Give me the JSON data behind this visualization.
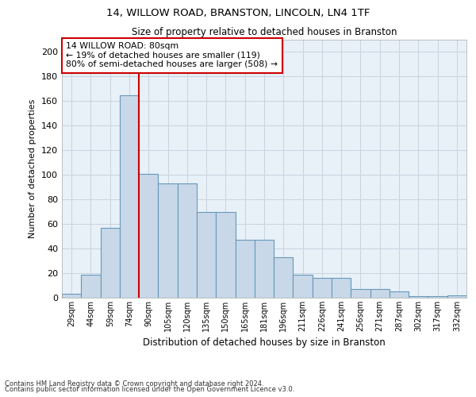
{
  "title1": "14, WILLOW ROAD, BRANSTON, LINCOLN, LN4 1TF",
  "title2": "Size of property relative to detached houses in Branston",
  "xlabel": "Distribution of detached houses by size in Branston",
  "ylabel": "Number of detached properties",
  "footer1": "Contains HM Land Registry data © Crown copyright and database right 2024.",
  "footer2": "Contains public sector information licensed under the Open Government Licence v3.0.",
  "bar_labels": [
    "29sqm",
    "44sqm",
    "59sqm",
    "74sqm",
    "90sqm",
    "105sqm",
    "120sqm",
    "135sqm",
    "150sqm",
    "165sqm",
    "181sqm",
    "196sqm",
    "211sqm",
    "226sqm",
    "241sqm",
    "256sqm",
    "271sqm",
    "287sqm",
    "302sqm",
    "317sqm",
    "332sqm"
  ],
  "bar_values": [
    3,
    19,
    57,
    165,
    101,
    93,
    93,
    70,
    70,
    47,
    47,
    33,
    19,
    16,
    16,
    7,
    7,
    5,
    1,
    1,
    2
  ],
  "bar_color": "#c8d8e8",
  "bar_edgecolor": "#6699bb",
  "vline_x": 3.5,
  "vline_color": "#cc0000",
  "annotation_text": "14 WILLOW ROAD: 80sqm\n← 19% of detached houses are smaller (119)\n80% of semi-detached houses are larger (508) →",
  "annotation_box_color": "#ffffff",
  "annotation_box_edgecolor": "#cc0000",
  "ylim": [
    0,
    210
  ],
  "yticks": [
    0,
    20,
    40,
    60,
    80,
    100,
    120,
    140,
    160,
    180,
    200
  ],
  "background_color": "#ffffff",
  "grid_color": "#c8d4e0"
}
